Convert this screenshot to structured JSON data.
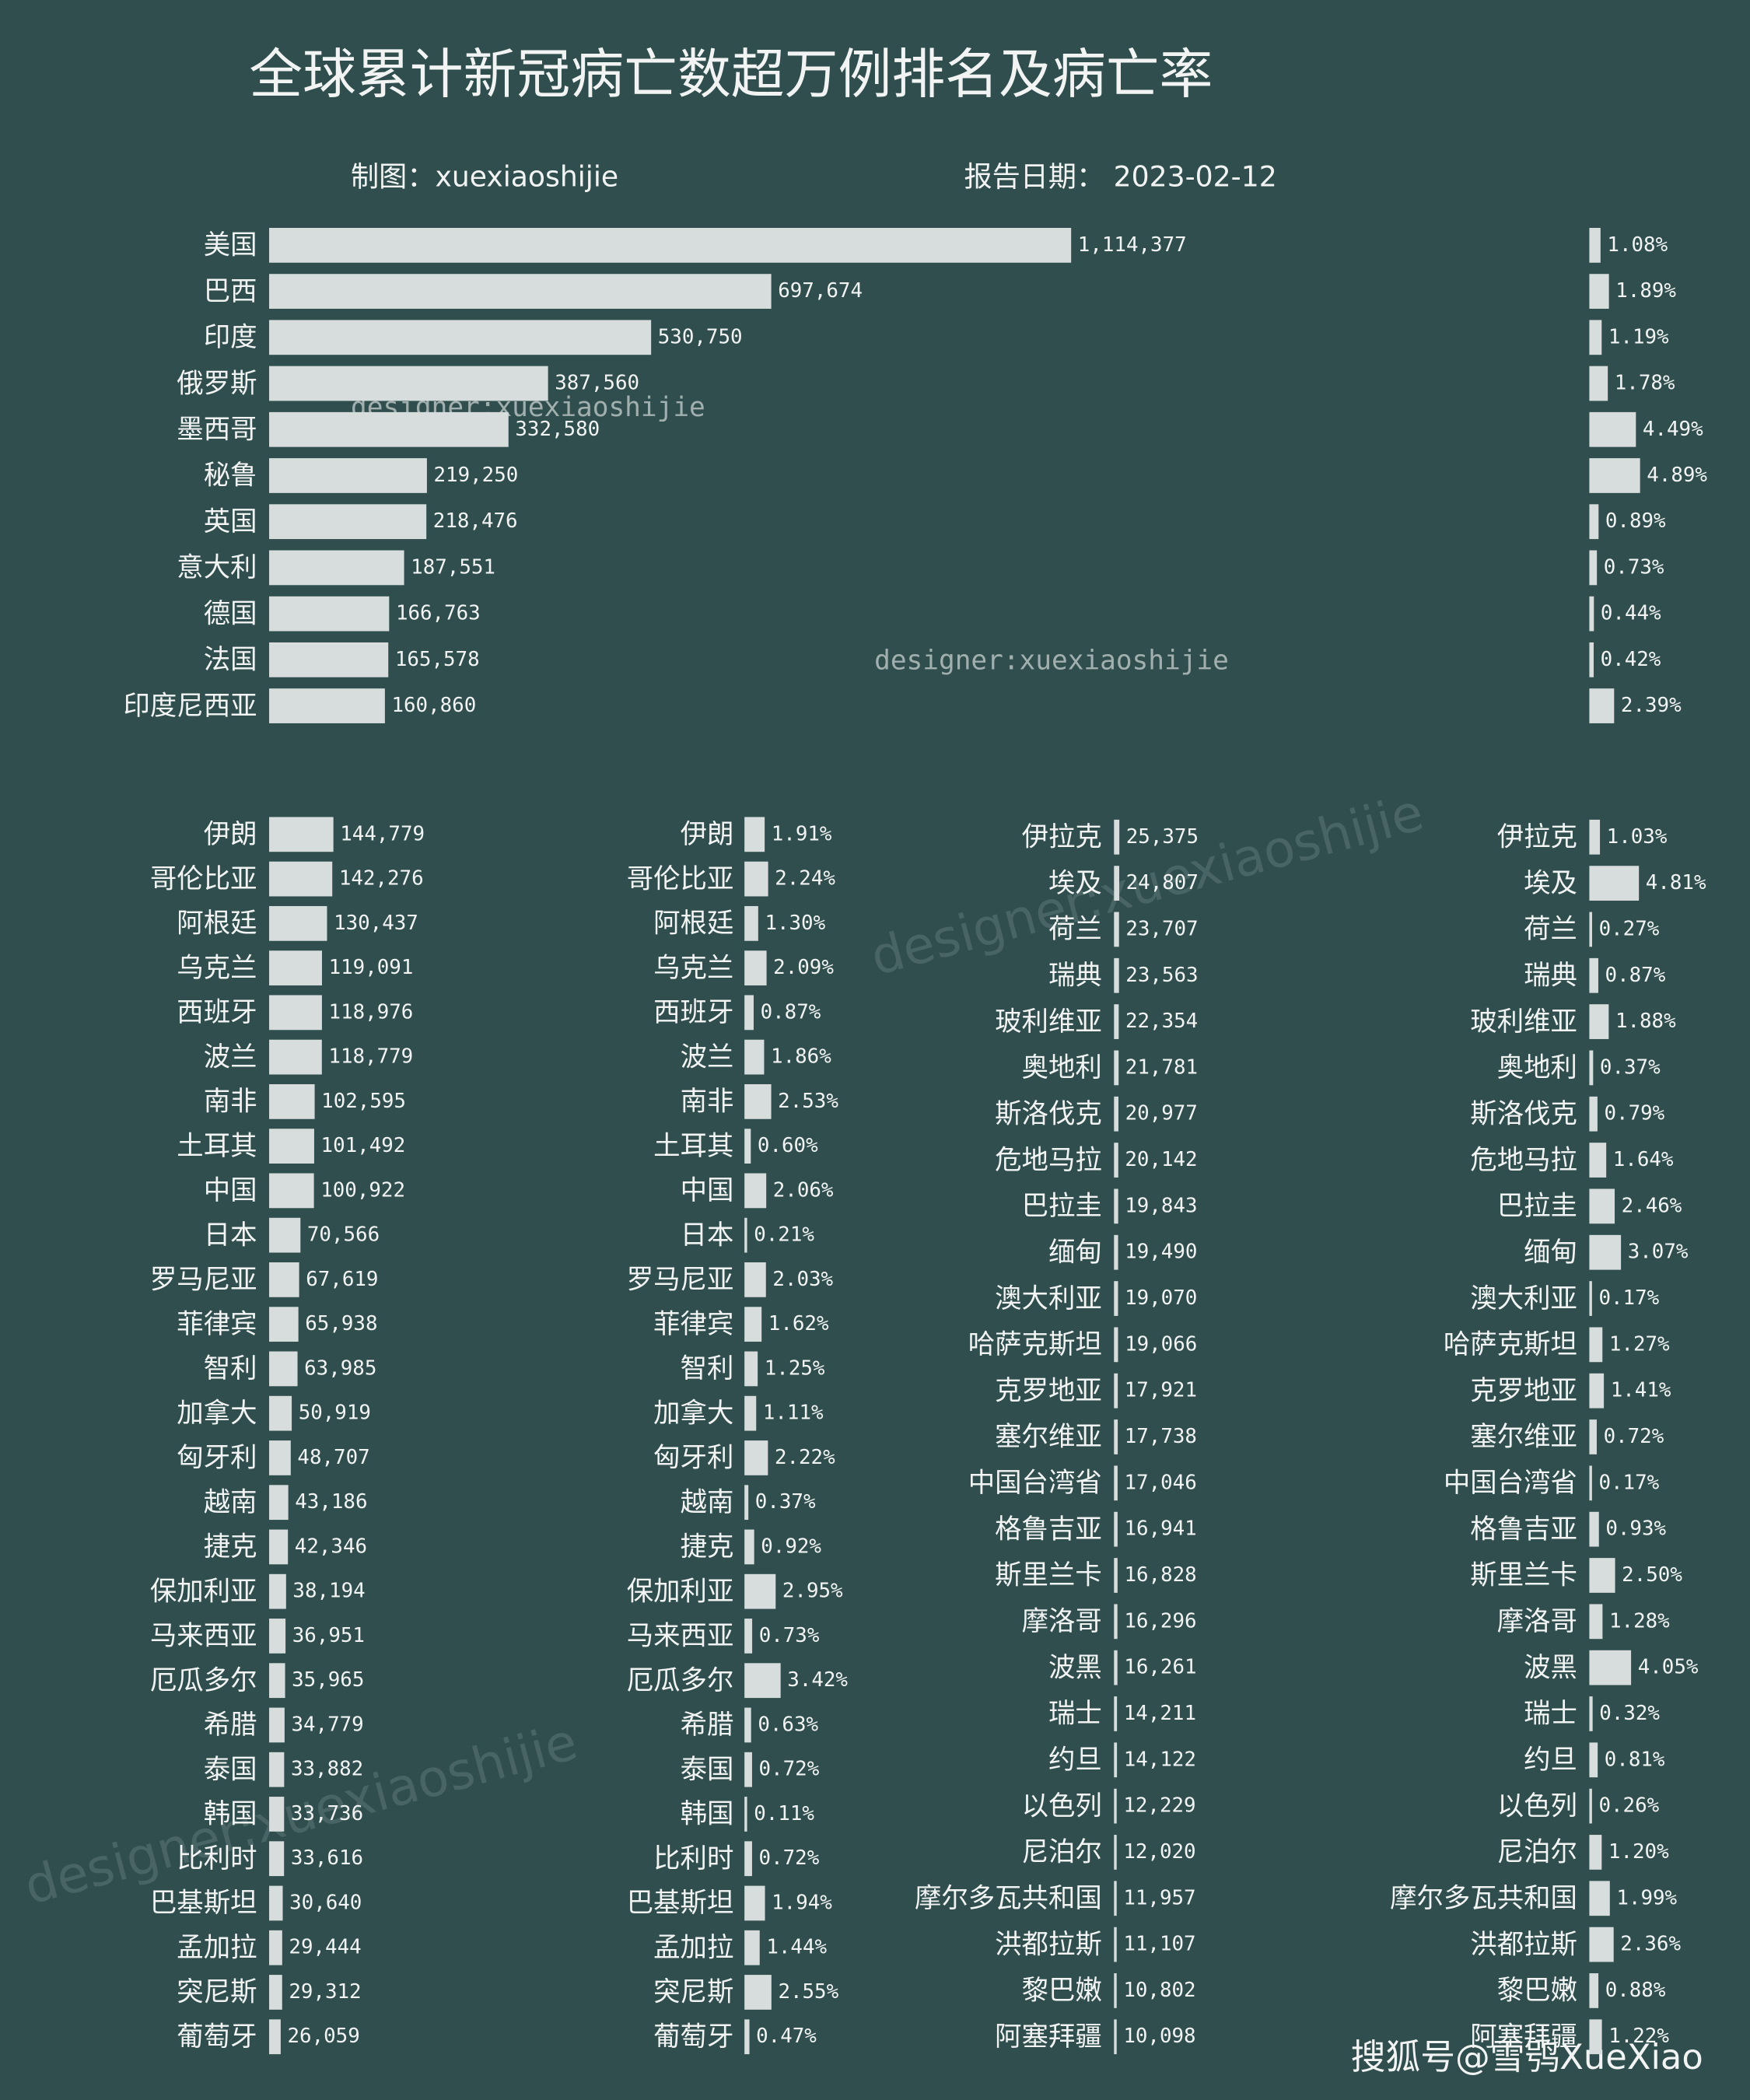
{
  "title": "全球累计新冠病亡数超万例排名及病亡率",
  "credit": "制图：xuexiaoshijie",
  "date_label": "报告日期： 2023-02-12",
  "watermarks": [
    "designer:xuexiaoshijie",
    "designer:xuexiaoshijie",
    "designer:xuexiaoshijie",
    "designer:xuexiaoshijie"
  ],
  "footer": "搜狐号@雪鸮XueXiao",
  "chart_data": [
    {
      "type": "bar",
      "color": "#d6dddc",
      "categories": [
        "美国",
        "巴西",
        "印度",
        "俄罗斯",
        "墨西哥",
        "秘鲁",
        "英国",
        "意大利",
        "德国",
        "法国",
        "印度尼西亚"
      ],
      "values": [
        1114377,
        697674,
        530750,
        387560,
        332580,
        219250,
        218476,
        187551,
        166763,
        165578,
        160860
      ],
      "value_labels": [
        "1,114,377",
        "697,674",
        "530,750",
        "387,560",
        "332,580",
        "219,250",
        "218,476",
        "187,551",
        "166,763",
        "165,578",
        "160,860"
      ]
    },
    {
      "type": "bar",
      "color": "#d6dddc",
      "values": [
        1.08,
        1.89,
        1.19,
        1.78,
        4.49,
        4.89,
        0.89,
        0.73,
        0.44,
        0.42,
        2.39
      ],
      "value_labels": [
        "1.08%",
        "1.89%",
        "1.19%",
        "1.78%",
        "4.49%",
        "4.89%",
        "0.89%",
        "0.73%",
        "0.44%",
        "0.42%",
        "2.39%"
      ]
    },
    {
      "type": "bar",
      "color": "#d6dddc",
      "categories": [
        "伊朗",
        "哥伦比亚",
        "阿根廷",
        "乌克兰",
        "西班牙",
        "波兰",
        "南非",
        "土耳其",
        "中国",
        "日本",
        "罗马尼亚",
        "菲律宾",
        "智利",
        "加拿大",
        "匈牙利",
        "越南",
        "捷克",
        "保加利亚",
        "马来西亚",
        "厄瓜多尔",
        "希腊",
        "泰国",
        "韩国",
        "比利时",
        "巴基斯坦",
        "孟加拉",
        "突尼斯",
        "葡萄牙"
      ],
      "values": [
        144779,
        142276,
        130437,
        119091,
        118976,
        118779,
        102595,
        101492,
        100922,
        70566,
        67619,
        65938,
        63985,
        50919,
        48707,
        43186,
        42346,
        38194,
        36951,
        35965,
        34779,
        33882,
        33736,
        33616,
        30640,
        29444,
        29312,
        26059
      ],
      "value_labels": [
        "144,779",
        "142,276",
        "130,437",
        "119,091",
        "118,976",
        "118,779",
        "102,595",
        "101,492",
        "100,922",
        "70,566",
        "67,619",
        "65,938",
        "63,985",
        "50,919",
        "48,707",
        "43,186",
        "42,346",
        "38,194",
        "36,951",
        "35,965",
        "34,779",
        "33,882",
        "33,736",
        "33,616",
        "30,640",
        "29,444",
        "29,312",
        "26,059"
      ]
    },
    {
      "type": "bar",
      "color": "#d6dddc",
      "categories": [
        "伊朗",
        "哥伦比亚",
        "阿根廷",
        "乌克兰",
        "西班牙",
        "波兰",
        "南非",
        "土耳其",
        "中国",
        "日本",
        "罗马尼亚",
        "菲律宾",
        "智利",
        "加拿大",
        "匈牙利",
        "越南",
        "捷克",
        "保加利亚",
        "马来西亚",
        "厄瓜多尔",
        "希腊",
        "泰国",
        "韩国",
        "比利时",
        "巴基斯坦",
        "孟加拉",
        "突尼斯",
        "葡萄牙"
      ],
      "values": [
        1.91,
        2.24,
        1.3,
        2.09,
        0.87,
        1.86,
        2.53,
        0.6,
        2.06,
        0.21,
        2.03,
        1.62,
        1.25,
        1.11,
        2.22,
        0.37,
        0.92,
        2.95,
        0.73,
        3.42,
        0.63,
        0.72,
        0.11,
        0.72,
        1.94,
        1.44,
        2.55,
        0.47
      ],
      "value_labels": [
        "1.91%",
        "2.24%",
        "1.30%",
        "2.09%",
        "0.87%",
        "1.86%",
        "2.53%",
        "0.60%",
        "2.06%",
        "0.21%",
        "2.03%",
        "1.62%",
        "1.25%",
        "1.11%",
        "2.22%",
        "0.37%",
        "0.92%",
        "2.95%",
        "0.73%",
        "3.42%",
        "0.63%",
        "0.72%",
        "0.11%",
        "0.72%",
        "1.94%",
        "1.44%",
        "2.55%",
        "0.47%"
      ]
    },
    {
      "type": "bar",
      "color": "#d6dddc",
      "categories": [
        "伊拉克",
        "埃及",
        "荷兰",
        "瑞典",
        "玻利维亚",
        "奥地利",
        "斯洛伐克",
        "危地马拉",
        "巴拉圭",
        "缅甸",
        "澳大利亚",
        "哈萨克斯坦",
        "克罗地亚",
        "塞尔维亚",
        "中国台湾省",
        "格鲁吉亚",
        "斯里兰卡",
        "摩洛哥",
        "波黑",
        "瑞士",
        "约旦",
        "以色列",
        "尼泊尔",
        "摩尔多瓦共和国",
        "洪都拉斯",
        "黎巴嫩",
        "阿塞拜疆"
      ],
      "values": [
        25375,
        24807,
        23707,
        23563,
        22354,
        21781,
        20977,
        20142,
        19843,
        19490,
        19070,
        19066,
        17921,
        17738,
        17046,
        16941,
        16828,
        16296,
        16261,
        14211,
        14122,
        12229,
        12020,
        11957,
        11107,
        10802,
        10098
      ],
      "value_labels": [
        "25,375",
        "24,807",
        "23,707",
        "23,563",
        "22,354",
        "21,781",
        "20,977",
        "20,142",
        "19,843",
        "19,490",
        "19,070",
        "19,066",
        "17,921",
        "17,738",
        "17,046",
        "16,941",
        "16,828",
        "16,296",
        "16,261",
        "14,211",
        "14,122",
        "12,229",
        "12,020",
        "11,957",
        "11,107",
        "10,802",
        "10,098"
      ]
    },
    {
      "type": "bar",
      "color": "#d6dddc",
      "categories": [
        "伊拉克",
        "埃及",
        "荷兰",
        "瑞典",
        "玻利维亚",
        "奥地利",
        "斯洛伐克",
        "危地马拉",
        "巴拉圭",
        "缅甸",
        "澳大利亚",
        "哈萨克斯坦",
        "克罗地亚",
        "塞尔维亚",
        "中国台湾省",
        "格鲁吉亚",
        "斯里兰卡",
        "摩洛哥",
        "波黑",
        "瑞士",
        "约旦",
        "以色列",
        "尼泊尔",
        "摩尔多瓦共和国",
        "洪都拉斯",
        "黎巴嫩",
        "阿塞拜疆"
      ],
      "values": [
        1.03,
        4.81,
        0.27,
        0.87,
        1.88,
        0.37,
        0.79,
        1.64,
        2.46,
        3.07,
        0.17,
        1.27,
        1.41,
        0.72,
        0.17,
        0.93,
        2.5,
        1.28,
        4.05,
        0.32,
        0.81,
        0.26,
        1.2,
        1.99,
        2.36,
        0.88,
        1.22
      ],
      "value_labels": [
        "1.03%",
        "4.81%",
        "0.27%",
        "0.87%",
        "1.88%",
        "0.37%",
        "0.79%",
        "1.64%",
        "2.46%",
        "3.07%",
        "0.17%",
        "1.27%",
        "1.41%",
        "0.72%",
        "0.17%",
        "0.93%",
        "2.50%",
        "1.28%",
        "4.05%",
        "0.32%",
        "0.81%",
        "0.26%",
        "1.20%",
        "1.99%",
        "2.36%",
        "0.88%",
        "1.22%"
      ]
    }
  ]
}
